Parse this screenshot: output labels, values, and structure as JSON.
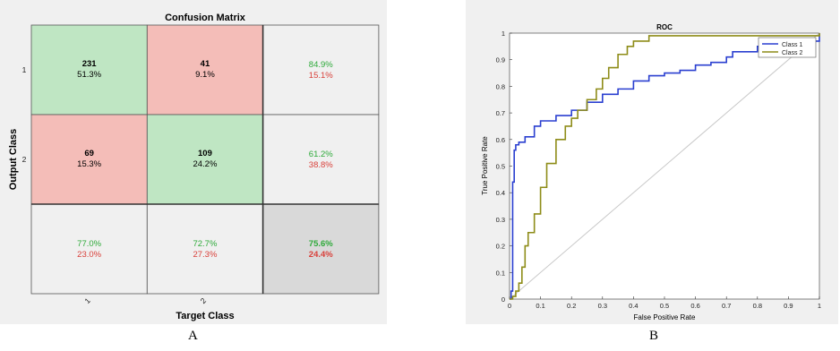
{
  "panels": {
    "a_label": "A",
    "b_label": "B"
  },
  "chart_data": [
    {
      "type": "heatmap",
      "title": "Confusion Matrix",
      "xlabel": "Target Class",
      "ylabel": "Output Class",
      "x_tick_labels": [
        "1",
        "2"
      ],
      "y_tick_labels": [
        "1",
        "2"
      ],
      "matrix": [
        [
          {
            "count": "231",
            "pct": "51.3%"
          },
          {
            "count": "41",
            "pct": "9.1%"
          }
        ],
        [
          {
            "count": "69",
            "pct": "15.3%"
          },
          {
            "count": "109",
            "pct": "24.2%"
          }
        ]
      ],
      "row_summary": [
        {
          "correct": "84.9%",
          "wrong": "15.1%"
        },
        {
          "correct": "61.2%",
          "wrong": "38.8%"
        }
      ],
      "col_summary": [
        {
          "correct": "77.0%",
          "wrong": "23.0%"
        },
        {
          "correct": "72.7%",
          "wrong": "27.3%"
        }
      ],
      "overall": {
        "correct": "75.6%",
        "wrong": "24.4%"
      },
      "colors": {
        "correct_bg": "#bfe6c3",
        "wrong_bg": "#f4bdb8",
        "summary_bg": "#f0f0f0",
        "overall_bg": "#d9d9d9",
        "green_text": "#2eaa3a",
        "red_text": "#d9403a"
      }
    },
    {
      "type": "line",
      "title": "ROC",
      "xlabel": "False Positive Rate",
      "ylabel": "True Positive Rate",
      "xlim": [
        0,
        1
      ],
      "ylim": [
        0,
        1
      ],
      "x_ticks": [
        "0",
        "0.1",
        "0.2",
        "0.3",
        "0.4",
        "0.5",
        "0.6",
        "0.7",
        "0.8",
        "0.9",
        "1"
      ],
      "y_ticks": [
        "0",
        "0.1",
        "0.2",
        "0.3",
        "0.4",
        "0.5",
        "0.6",
        "0.7",
        "0.8",
        "0.9",
        "1"
      ],
      "legend": "top-right",
      "series": [
        {
          "name": "Class 1",
          "color": "#2a3fd0",
          "x": [
            0,
            0.005,
            0.01,
            0.01,
            0.015,
            0.015,
            0.02,
            0.03,
            0.05,
            0.08,
            0.1,
            0.15,
            0.2,
            0.25,
            0.3,
            0.35,
            0.4,
            0.45,
            0.5,
            0.55,
            0.6,
            0.65,
            0.7,
            0.72,
            0.75,
            0.8,
            0.85,
            0.9,
            0.95,
            1
          ],
          "y": [
            0,
            0.03,
            0.05,
            0.44,
            0.48,
            0.56,
            0.58,
            0.59,
            0.61,
            0.65,
            0.67,
            0.69,
            0.71,
            0.74,
            0.77,
            0.79,
            0.82,
            0.84,
            0.85,
            0.86,
            0.88,
            0.89,
            0.91,
            0.93,
            0.93,
            0.95,
            0.95,
            0.96,
            0.97,
            1
          ]
        },
        {
          "name": "Class 2",
          "color": "#8e8c18",
          "x": [
            0,
            0.01,
            0.02,
            0.03,
            0.04,
            0.05,
            0.06,
            0.08,
            0.1,
            0.12,
            0.15,
            0.18,
            0.2,
            0.22,
            0.25,
            0.28,
            0.3,
            0.32,
            0.35,
            0.38,
            0.4,
            0.45,
            0.5,
            0.6,
            0.7,
            0.8,
            0.9,
            1
          ],
          "y": [
            0,
            0.01,
            0.03,
            0.06,
            0.12,
            0.2,
            0.25,
            0.32,
            0.42,
            0.51,
            0.6,
            0.65,
            0.68,
            0.71,
            0.75,
            0.79,
            0.83,
            0.87,
            0.92,
            0.95,
            0.97,
            0.99,
            0.99,
            0.99,
            0.99,
            0.99,
            0.99,
            1
          ]
        }
      ],
      "diagonal_color": "#c8c8c8"
    }
  ]
}
